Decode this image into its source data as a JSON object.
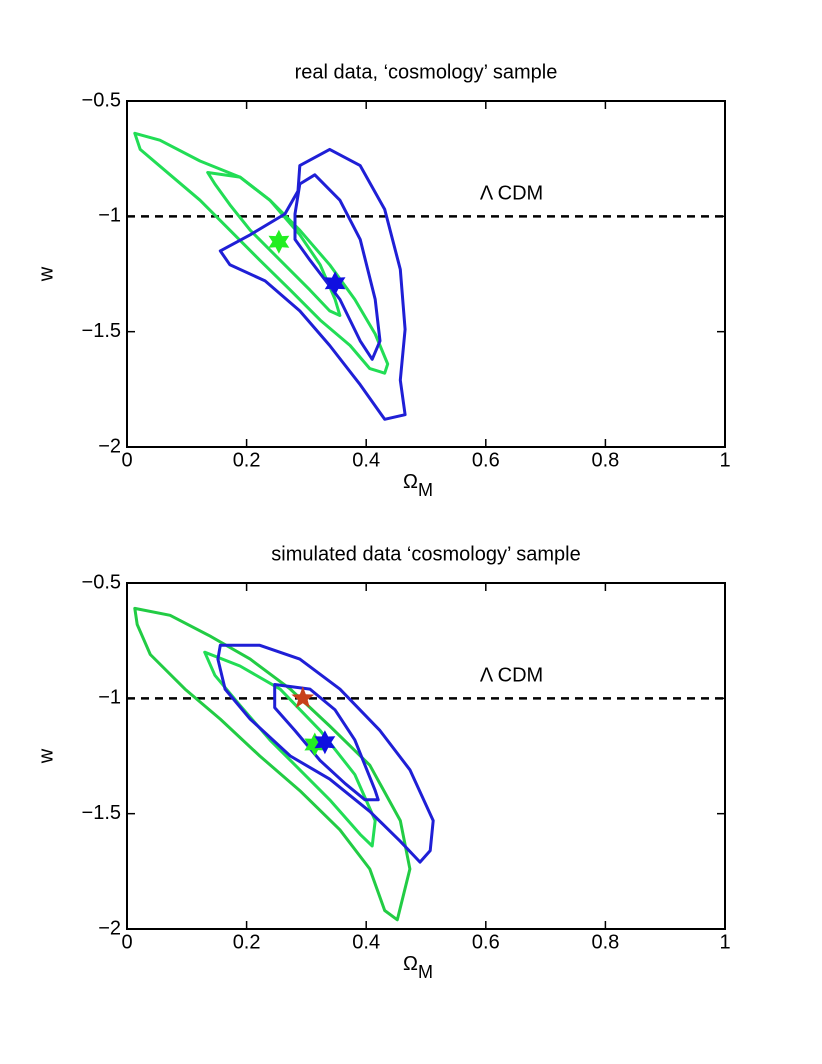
{
  "chart_data": [
    {
      "type": "contour",
      "title": "real data, ‘cosmology’ sample",
      "xlabel": "Ω",
      "xlabel_sub": "M",
      "ylabel": "w",
      "xlim": [
        0,
        1
      ],
      "ylim": [
        -2,
        -0.5
      ],
      "xticks": [
        0,
        0.2,
        0.4,
        0.6,
        0.8,
        1
      ],
      "yticks": [
        {
          "value": -2,
          "label": "−2"
        },
        {
          "value": -1.5,
          "label": "−1.5"
        },
        {
          "value": -1,
          "label": "−1"
        },
        {
          "value": -0.5,
          "label": "−0.5"
        }
      ],
      "hline": {
        "y": -1,
        "label": "Λ CDM"
      },
      "series": [
        {
          "color": "#22dd55",
          "x": [
            0.013,
            0.055,
            0.122,
            0.189,
            0.239,
            0.289,
            0.339,
            0.381,
            0.415,
            0.436,
            0.431,
            0.406,
            0.373,
            0.323,
            0.273,
            0.222,
            0.172,
            0.122,
            0.072,
            0.022
          ],
          "y": [
            -0.64,
            -0.67,
            -0.76,
            -0.83,
            -0.93,
            -1.06,
            -1.21,
            -1.36,
            -1.51,
            -1.64,
            -1.68,
            -1.66,
            -1.56,
            -1.45,
            -1.32,
            -1.19,
            -1.06,
            -0.93,
            -0.82,
            -0.71
          ]
        },
        {
          "color": "#22dd55",
          "x": [
            0.135,
            0.189,
            0.239,
            0.289,
            0.323,
            0.348,
            0.356,
            0.339,
            0.306,
            0.256,
            0.206,
            0.172,
            0.147
          ],
          "y": [
            -0.81,
            -0.83,
            -0.93,
            -1.08,
            -1.21,
            -1.36,
            -1.43,
            -1.41,
            -1.32,
            -1.19,
            -1.06,
            -0.95,
            -0.86
          ]
        },
        {
          "color": "#1f1fd6",
          "x": [
            0.289,
            0.339,
            0.39,
            0.431,
            0.457,
            0.465,
            0.457,
            0.465,
            0.431,
            0.39,
            0.339,
            0.289,
            0.231,
            0.172,
            0.156,
            0.206,
            0.264,
            0.286
          ],
          "y": [
            -0.78,
            -0.71,
            -0.78,
            -0.97,
            -1.23,
            -1.49,
            -1.71,
            -1.86,
            -1.88,
            -1.73,
            -1.56,
            -1.41,
            -1.28,
            -1.21,
            -1.15,
            -1.08,
            -0.99,
            -0.89
          ]
        },
        {
          "color": "#1f1fd6",
          "x": [
            0.289,
            0.314,
            0.356,
            0.39,
            0.415,
            0.423,
            0.41,
            0.39,
            0.356,
            0.306,
            0.281,
            0.281
          ],
          "y": [
            -0.86,
            -0.82,
            -0.93,
            -1.1,
            -1.36,
            -1.54,
            -1.62,
            -1.54,
            -1.36,
            -1.19,
            -1.1,
            -0.99
          ]
        }
      ],
      "markers": [
        {
          "color": "#22ee22",
          "shape": "hexagram",
          "x": 0.254,
          "y": -1.11
        },
        {
          "color": "#1010e0",
          "shape": "hexagram",
          "x": 0.348,
          "y": -1.29
        }
      ]
    },
    {
      "type": "contour",
      "title": "simulated data ‘cosmology’ sample",
      "xlabel": "Ω",
      "xlabel_sub": "M",
      "ylabel": "w",
      "xlim": [
        0,
        1
      ],
      "ylim": [
        -2,
        -0.5
      ],
      "xticks": [
        0,
        0.2,
        0.4,
        0.6,
        0.8,
        1
      ],
      "yticks": [
        {
          "value": -2,
          "label": "−2"
        },
        {
          "value": -1.5,
          "label": "−1.5"
        },
        {
          "value": -1,
          "label": "−1"
        },
        {
          "value": -0.5,
          "label": "−0.5"
        }
      ],
      "hline": {
        "y": -1,
        "label": "Λ CDM"
      },
      "series": [
        {
          "color": "#22cc44",
          "x": [
            0.013,
            0.072,
            0.139,
            0.206,
            0.273,
            0.339,
            0.406,
            0.457,
            0.473,
            0.452,
            0.431,
            0.406,
            0.356,
            0.289,
            0.222,
            0.156,
            0.097,
            0.039,
            0.017
          ],
          "y": [
            -0.61,
            -0.64,
            -0.73,
            -0.83,
            -0.96,
            -1.12,
            -1.29,
            -1.53,
            -1.74,
            -1.96,
            -1.92,
            -1.74,
            -1.57,
            -1.4,
            -1.25,
            -1.09,
            -0.96,
            -0.81,
            -0.68
          ]
        },
        {
          "color": "#22dd55",
          "x": [
            0.13,
            0.189,
            0.256,
            0.323,
            0.381,
            0.415,
            0.41,
            0.39,
            0.339,
            0.289,
            0.239,
            0.189,
            0.147
          ],
          "y": [
            -0.8,
            -0.86,
            -0.96,
            -1.14,
            -1.33,
            -1.53,
            -1.64,
            -1.59,
            -1.44,
            -1.31,
            -1.18,
            -1.03,
            -0.9
          ]
        },
        {
          "color": "#1f1fd6",
          "x": [
            0.156,
            0.222,
            0.289,
            0.356,
            0.423,
            0.473,
            0.512,
            0.507,
            0.49,
            0.457,
            0.406,
            0.339,
            0.273,
            0.206,
            0.164,
            0.152
          ],
          "y": [
            -0.77,
            -0.77,
            -0.83,
            -0.96,
            -1.14,
            -1.31,
            -1.53,
            -1.66,
            -1.71,
            -1.62,
            -1.49,
            -1.35,
            -1.25,
            -1.09,
            -0.96,
            -0.83
          ]
        },
        {
          "color": "#1f1fd6",
          "x": [
            0.247,
            0.306,
            0.348,
            0.381,
            0.415,
            0.42,
            0.398,
            0.365,
            0.323,
            0.281,
            0.247
          ],
          "y": [
            -0.94,
            -0.96,
            -1.05,
            -1.18,
            -1.4,
            -1.44,
            -1.44,
            -1.37,
            -1.27,
            -1.14,
            -1.04
          ]
        }
      ],
      "markers": [
        {
          "color": "#c8401a",
          "shape": "pentagram",
          "x": 0.294,
          "y": -1.0
        },
        {
          "color": "#22ee22",
          "shape": "hexagram",
          "x": 0.314,
          "y": -1.2
        },
        {
          "color": "#1010e0",
          "shape": "hexagram",
          "x": 0.331,
          "y": -1.19
        }
      ]
    }
  ]
}
